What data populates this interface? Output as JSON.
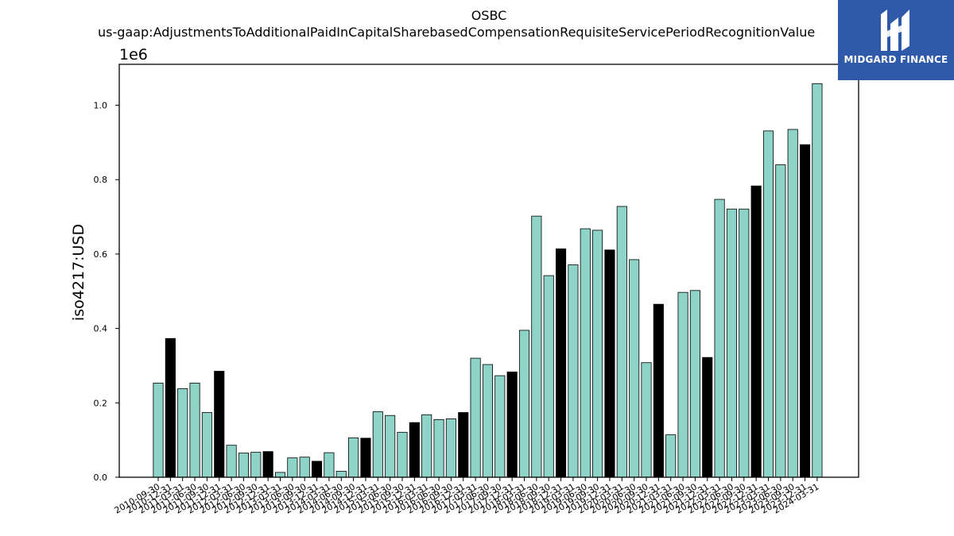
{
  "chart_data": {
    "type": "bar",
    "title": "OSBC",
    "subtitle": "us-gaap:AdjustmentsToAdditionalPaidInCapitalSharebasedCompensationRequisiteServicePeriodRecognitionValue",
    "ylabel": "iso4217:USD",
    "xlabel": "",
    "offset_label": "1e6",
    "ylim": [
      0,
      1.11
    ],
    "yticks": [
      "0.0",
      "0.2",
      "0.4",
      "0.6",
      "0.8",
      "1.0"
    ],
    "colors": {
      "normal": "#8dd3c7",
      "highlight": "#000000",
      "edge": "#000000"
    },
    "categories": [
      "2010-09-30",
      "2010-12-31",
      "2011-03-31",
      "2011-06-30",
      "2011-09-30",
      "2011-12-31",
      "2012-03-31",
      "2012-06-30",
      "2012-09-30",
      "2012-12-31",
      "2013-03-31",
      "2013-06-30",
      "2013-09-30",
      "2013-12-31",
      "2014-03-31",
      "2014-06-30",
      "2014-09-30",
      "2014-12-31",
      "2015-03-31",
      "2015-06-30",
      "2015-09-30",
      "2015-12-31",
      "2016-03-31",
      "2016-06-30",
      "2016-09-30",
      "2016-12-31",
      "2017-03-31",
      "2017-06-30",
      "2017-09-30",
      "2017-12-31",
      "2018-03-31",
      "2018-06-30",
      "2018-09-30",
      "2018-12-31",
      "2019-03-31",
      "2019-06-30",
      "2019-09-30",
      "2019-12-31",
      "2020-03-31",
      "2020-06-30",
      "2020-09-30",
      "2020-12-31",
      "2021-03-31",
      "2021-06-30",
      "2021-09-30",
      "2021-12-31",
      "2022-03-31",
      "2022-06-30",
      "2022-09-30",
      "2022-12-31",
      "2023-03-31",
      "2023-06-30",
      "2023-09-30",
      "2023-12-31",
      "2024-03-31"
    ],
    "values": [
      0.253,
      0.373,
      0.238,
      0.253,
      0.174,
      0.285,
      0.086,
      0.065,
      0.067,
      0.069,
      0.013,
      0.052,
      0.054,
      0.043,
      0.066,
      0.016,
      0.106,
      0.105,
      0.176,
      0.166,
      0.121,
      0.147,
      0.168,
      0.155,
      0.157,
      0.174,
      0.32,
      0.303,
      0.273,
      0.283,
      0.395,
      0.702,
      0.542,
      0.614,
      0.571,
      0.668,
      0.664,
      0.611,
      0.728,
      0.585,
      0.308,
      0.465,
      0.114,
      0.497,
      0.502,
      0.322,
      0.747,
      0.721,
      0.721,
      0.783,
      0.931,
      0.84,
      0.935,
      0.894,
      1.058
    ],
    "highlight": [
      false,
      true,
      false,
      false,
      false,
      true,
      false,
      false,
      false,
      true,
      false,
      false,
      false,
      true,
      false,
      false,
      false,
      true,
      false,
      false,
      false,
      true,
      false,
      false,
      false,
      true,
      false,
      false,
      false,
      true,
      false,
      false,
      false,
      true,
      false,
      false,
      false,
      true,
      false,
      false,
      false,
      true,
      false,
      false,
      false,
      true,
      false,
      false,
      false,
      true,
      false,
      false,
      false,
      true,
      false
    ],
    "grid": false,
    "legend": "none"
  },
  "logo": {
    "text": "MIDGARD FINANCE",
    "icon": "midgard-logo-icon",
    "background": "#2f5aaa"
  }
}
